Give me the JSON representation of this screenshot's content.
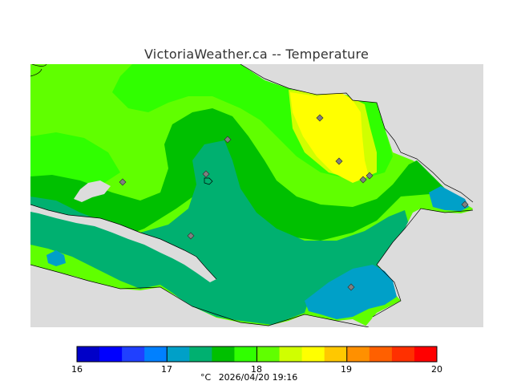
{
  "title": "VictoriaWeather.ca -- Temperature",
  "legend": {
    "unit": "°C",
    "timestamp": "2026/04/20 19:16",
    "ticks": [
      "16",
      "17",
      "18",
      "19",
      "20"
    ],
    "colors": [
      "#000090",
      "#0000C8",
      "#0000FF",
      "#2040FF",
      "#0080FF",
      "#00A0C8",
      "#00B070",
      "#00C000",
      "#30FF00",
      "#60FF00",
      "#D0FF00",
      "#FFFF00",
      "#FFC800",
      "#FF9000",
      "#FF6000",
      "#FF3000",
      "#FF0000"
    ]
  },
  "map": {
    "land_color": "#DCDCDC",
    "contour_colors": {
      "17_to_17.5": "#00A0C8",
      "17.5_to_17.75": "#00B070",
      "17.75_to_18": "#00C000",
      "18_to_18.25": "#30FF00",
      "18.25_to_18.5": "#60FF00",
      "18.5_to_18.75": "#D0FF00",
      "18.75_to_19": "#FFFF00",
      "19_to_19.25": "#FFC800"
    },
    "station_count": 10
  }
}
